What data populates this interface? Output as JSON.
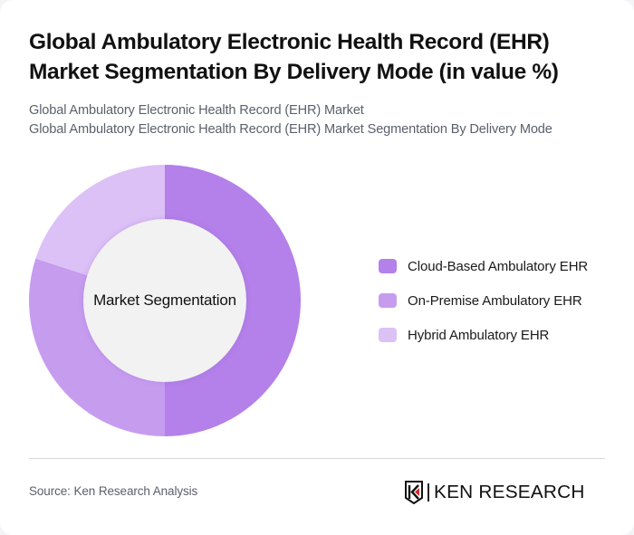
{
  "header": {
    "title_line1": "Global Ambulatory Electronic Health Record (EHR)",
    "title_line2": "Market Segmentation By Delivery Mode (in value %)",
    "subtitle_line1": "Global Ambulatory Electronic Health Record (EHR) Market",
    "subtitle_line2": "Global Ambulatory Electronic Health Record (EHR) Market Segmentation By Delivery Mode"
  },
  "chart": {
    "center_label": "Market Segmentation"
  },
  "legend": {
    "items": [
      {
        "label": "Cloud-Based Ambulatory EHR",
        "color": "#b480ea"
      },
      {
        "label": "On-Premise Ambulatory EHR",
        "color": "#c69cef"
      },
      {
        "label": "Hybrid Ambulatory EHR",
        "color": "#dbc1f6"
      }
    ]
  },
  "footer": {
    "source": "Source: Ken Research Analysis",
    "logo_text": "KEN RESEARCH"
  },
  "chart_data": {
    "type": "pie",
    "variant": "donut",
    "title": "Global Ambulatory Electronic Health Record (EHR) Market Segmentation By Delivery Mode (in value %)",
    "subtitle": "Global Ambulatory Electronic Health Record (EHR) Market Segmentation By Delivery Mode",
    "center_label": "Market Segmentation",
    "categories": [
      "Cloud-Based Ambulatory EHR",
      "On-Premise Ambulatory EHR",
      "Hybrid Ambulatory EHR"
    ],
    "values": [
      50,
      30,
      20
    ],
    "unit": "%",
    "colors": [
      "#b480ea",
      "#c69cef",
      "#dbc1f6"
    ],
    "start_angle_deg": 0,
    "direction": "clockwise",
    "legend_position": "right",
    "data_labels": false,
    "source": "Source: Ken Research Analysis"
  }
}
